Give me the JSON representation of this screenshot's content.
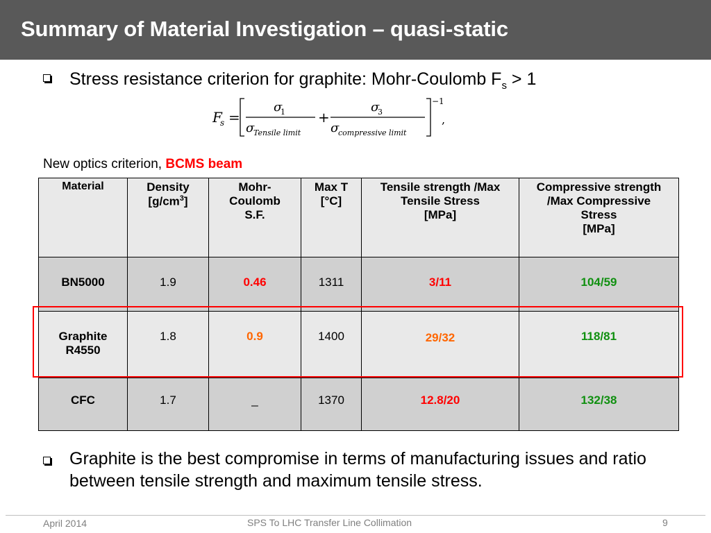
{
  "slide": {
    "title": "Summary of Material Investigation – quasi-static"
  },
  "bullets": {
    "first_pre": "Stress resistance criterion for graphite: Mohr-Coulomb F",
    "first_sub": "s",
    "first_post": " > 1",
    "second": "Graphite is the best compromise in terms of manufacturing issues and ratio between tensile strength and maximum tensile stress."
  },
  "formula": {
    "lhs": "F",
    "lhs_sub": "s",
    "num1": "σ",
    "num1_sub": "1",
    "den1": "σ",
    "den1_sub": "Tensile limit",
    "num2": "σ",
    "num2_sub": "3",
    "den2": "σ",
    "den2_sub": "compressive limit",
    "exponent": "−1",
    "trailing": ","
  },
  "criterion": {
    "prefix": "New optics criterion, ",
    "highlight": "BCMS beam"
  },
  "table": {
    "headers": {
      "material": "Material",
      "density_line1": "Density",
      "density_line2": "[g/cm",
      "density_sup": "3",
      "density_close": "]",
      "mohr_line1": "Mohr-",
      "mohr_line2": "Coulomb",
      "mohr_line3": "S.F.",
      "maxt_line1": "Max T",
      "maxt_line2": "[°C]",
      "tensile_line1": "Tensile strength /Max",
      "tensile_line2": "Tensile Stress",
      "tensile_line3": "[MPa]",
      "comp_line1": "Compressive strength",
      "comp_line2": "/Max Compressive",
      "comp_line3": "Stress",
      "comp_line4": "[MPa]"
    },
    "rows": [
      {
        "material": "BN5000",
        "density": "1.9",
        "mohr": "0.46",
        "max_t": "1311",
        "tensile": "3/11",
        "compressive": "104/59"
      },
      {
        "material_line1": "Graphite",
        "material_line2": "R4550",
        "density": "1.8",
        "mohr": "0.9",
        "max_t": "1400",
        "tensile": "29/32",
        "compressive": "118/81"
      },
      {
        "material": "CFC",
        "density": "1.7",
        "mohr": "_",
        "max_t": "1370",
        "tensile": "12.8/20",
        "compressive": "132/38"
      }
    ]
  },
  "colors": {
    "title_bar": "#595959",
    "red": "#ff0000",
    "orange": "#ff6600",
    "green": "#109010"
  },
  "footer": {
    "date": "April 2014",
    "center": "SPS To LHC Transfer Line Collimation",
    "page": "9"
  }
}
